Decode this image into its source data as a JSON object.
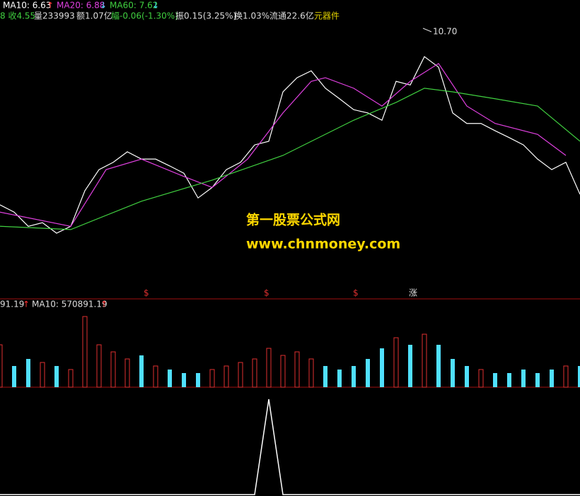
{
  "header": {
    "ma": [
      {
        "text": "MA10: 6.63",
        "arrow": "↑"
      },
      {
        "text": "MA20: 6.88",
        "arrow": "↓"
      },
      {
        "text": "MA60: 7.62",
        "arrow": "↓"
      }
    ],
    "info": [
      "8 收4.55",
      "量233993",
      "额1.07亿",
      "幅-0.06(-1.30%)",
      "振0.15(3.25%)",
      "换1.03%",
      "流通22.6亿",
      "元器件"
    ]
  },
  "watermark": {
    "title": "第一股票公式网",
    "url": "www.chnmoney.com"
  },
  "price_panel": {
    "high_label": "10.70",
    "xlim": [
      0,
      41
    ],
    "ylim": [
      4.16,
      11.14
    ],
    "series": [
      {
        "color": "#ffffff",
        "x": [
          0,
          1,
          2,
          3,
          4,
          5,
          6,
          7,
          8,
          9,
          10,
          11,
          12,
          13,
          14,
          15,
          16,
          17,
          18,
          19,
          20,
          21,
          22,
          23,
          24,
          25,
          26,
          27,
          28,
          29,
          30,
          31,
          32,
          33,
          34,
          35,
          36,
          37,
          38,
          39,
          40,
          41
        ],
        "values": [
          6.43,
          6.25,
          5.9,
          5.99,
          5.73,
          5.9,
          6.78,
          7.3,
          7.48,
          7.74,
          7.56,
          7.56,
          7.39,
          7.21,
          6.6,
          6.86,
          7.3,
          7.48,
          7.91,
          8.0,
          9.22,
          9.57,
          9.74,
          9.31,
          9.05,
          8.78,
          8.7,
          8.52,
          9.48,
          9.39,
          10.09,
          9.83,
          8.7,
          8.44,
          8.44,
          8.26,
          8.09,
          7.91,
          7.56,
          7.3,
          7.48,
          6.69
        ]
      },
      {
        "color": "#e040e0",
        "x": [
          0,
          5,
          7.5,
          10,
          13,
          15,
          17.5,
          20,
          22,
          23,
          25,
          27,
          29,
          31,
          33,
          35,
          38,
          40
        ],
        "values": [
          6.25,
          5.9,
          7.3,
          7.56,
          7.13,
          6.86,
          7.56,
          8.7,
          9.48,
          9.57,
          9.31,
          8.87,
          9.48,
          9.92,
          8.87,
          8.44,
          8.17,
          7.65
        ]
      },
      {
        "color": "#40d040",
        "x": [
          0,
          5,
          10,
          15,
          20,
          25,
          28,
          30,
          32,
          35,
          38,
          41
        ],
        "values": [
          5.9,
          5.82,
          6.52,
          7.04,
          7.65,
          8.52,
          8.96,
          9.31,
          9.22,
          9.05,
          8.87,
          8.0
        ]
      }
    ]
  },
  "volume_panel": {
    "label": "91.19",
    "label_arrow": "↑",
    "ma": "MA10: 570891.19",
    "ma_arrow": "↑",
    "ylim": [
      0,
      2460000
    ],
    "values": [
      1200000,
      600000,
      800000,
      700000,
      600000,
      500000,
      2000000,
      1200000,
      1000000,
      800000,
      900000,
      600000,
      500000,
      400000,
      400000,
      500000,
      600000,
      700000,
      800000,
      1100000,
      900000,
      1000000,
      800000,
      600000,
      500000,
      600000,
      800000,
      1100000,
      1400000,
      1200000,
      1500000,
      1200000,
      800000,
      600000,
      500000,
      400000,
      400000,
      500000,
      400000,
      500000,
      600000,
      600000
    ]
  },
  "signal_panel": {
    "ylim": [
      0,
      1
    ],
    "values": [
      0,
      0,
      0,
      0,
      0,
      0,
      0,
      0,
      0,
      0,
      0,
      0,
      0,
      0,
      0,
      0,
      0,
      0,
      0,
      1,
      0,
      0,
      0,
      0,
      0,
      0,
      0,
      0,
      0,
      0,
      0,
      0,
      0,
      0,
      0,
      0,
      0,
      0,
      0,
      0,
      0,
      0
    ]
  },
  "markers": [
    "$",
    "$",
    "$",
    "涨"
  ]
}
